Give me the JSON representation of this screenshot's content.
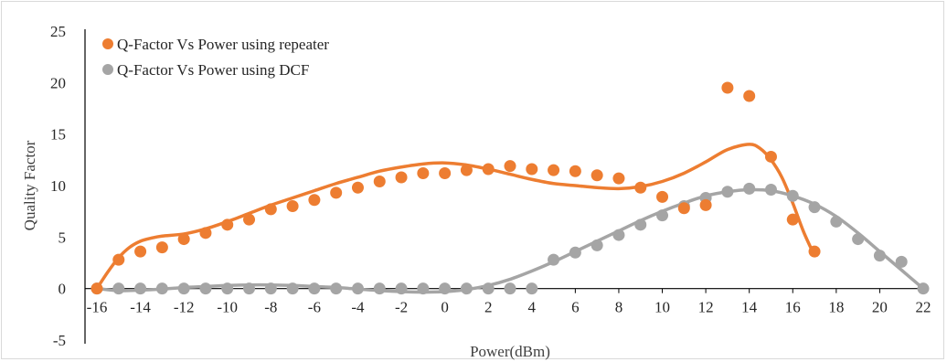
{
  "chart_data": {
    "type": "scatter",
    "title": "",
    "xlabel": "Power(dBm)",
    "ylabel": "Quality Factor",
    "xlim": [
      -16,
      22
    ],
    "ylim": [
      -5,
      25
    ],
    "xticks": [
      -16,
      -14,
      -12,
      -10,
      -8,
      -6,
      -4,
      -2,
      0,
      2,
      4,
      6,
      8,
      10,
      12,
      14,
      16,
      18,
      20,
      22
    ],
    "yticks": [
      -5,
      0,
      5,
      10,
      15,
      20,
      25
    ],
    "grid": false,
    "legend_position": "top-left",
    "series": [
      {
        "name": "Q-Factor Vs Power using repeater",
        "color": "#ed7d31",
        "x": [
          -16,
          -15,
          -14,
          -13,
          -12,
          -11,
          -10,
          -9,
          -8,
          -7,
          -6,
          -5,
          -4,
          -3,
          -2,
          -1,
          0,
          1,
          2,
          3,
          4,
          5,
          6,
          7,
          8,
          9,
          10,
          11,
          12,
          13,
          14,
          15,
          16,
          17
        ],
        "y": [
          0,
          2.8,
          3.6,
          4.0,
          4.8,
          5.4,
          6.2,
          6.7,
          7.7,
          8.0,
          8.6,
          9.3,
          9.8,
          10.4,
          10.8,
          11.2,
          11.2,
          11.5,
          11.6,
          11.9,
          11.6,
          11.5,
          11.4,
          11.0,
          10.7,
          9.8,
          8.9,
          7.8,
          8.1,
          19.5,
          18.7,
          12.8,
          6.7,
          3.6
        ],
        "trend_x": [
          -16,
          -15.5,
          -15,
          -14.5,
          -14,
          -13.5,
          -13,
          -12,
          -11,
          -10,
          -9,
          -8,
          -7,
          -6,
          -5,
          -4,
          -3,
          -2,
          -1,
          0,
          1,
          2,
          3,
          4,
          5,
          6,
          7,
          8,
          9,
          10,
          11,
          12,
          13,
          14,
          14.5,
          15,
          15.5,
          16,
          16.5,
          17
        ],
        "trend_y": [
          0,
          1.6,
          3.0,
          4.0,
          4.6,
          4.9,
          5.1,
          5.3,
          5.8,
          6.5,
          7.3,
          8.1,
          8.8,
          9.5,
          10.2,
          10.8,
          11.4,
          11.8,
          12.1,
          12.2,
          12.0,
          11.6,
          11.1,
          10.6,
          10.2,
          10.0,
          9.8,
          9.7,
          9.9,
          10.4,
          11.2,
          12.3,
          13.5,
          14.0,
          13.6,
          12.5,
          10.8,
          8.3,
          5.5,
          3.2
        ]
      },
      {
        "name": "Q-Factor Vs Power using DCF",
        "color": "#a5a5a5",
        "x": [
          -16,
          -15,
          -14,
          -13,
          -12,
          -11,
          -10,
          -9,
          -8,
          -7,
          -6,
          -5,
          -4,
          -3,
          -2,
          -1,
          0,
          1,
          2,
          3,
          4,
          5,
          6,
          7,
          8,
          9,
          10,
          11,
          12,
          13,
          14,
          15,
          16,
          17,
          18,
          19,
          20,
          21,
          22
        ],
        "y": [
          0,
          0,
          0,
          0,
          0,
          0,
          0,
          0,
          0,
          0,
          0,
          0,
          0,
          0,
          0,
          0,
          0,
          0,
          0,
          0,
          0,
          2.8,
          3.5,
          4.2,
          5.2,
          6.2,
          7.1,
          8.0,
          8.8,
          9.4,
          9.7,
          9.6,
          9.0,
          7.9,
          6.5,
          4.8,
          3.2,
          2.6,
          0
        ],
        "trend_x": [
          -16,
          -15,
          -14,
          -13,
          -12,
          -11,
          -10,
          -9,
          -8,
          -7,
          -6,
          -5,
          -4,
          -3,
          -2,
          -1,
          0,
          1,
          2,
          3,
          4,
          5,
          6,
          7,
          8,
          9,
          10,
          11,
          12,
          13,
          14,
          15,
          16,
          17,
          18,
          19,
          20,
          21,
          22
        ],
        "trend_y": [
          0,
          -0.2,
          -0.15,
          -0.05,
          0.1,
          0.2,
          0.3,
          0.35,
          0.35,
          0.3,
          0.2,
          0.1,
          -0.05,
          -0.2,
          -0.3,
          -0.35,
          -0.3,
          -0.1,
          0.3,
          0.9,
          1.7,
          2.6,
          3.6,
          4.6,
          5.6,
          6.6,
          7.5,
          8.3,
          9.0,
          9.4,
          9.6,
          9.5,
          9.0,
          8.2,
          7.0,
          5.4,
          3.6,
          1.8,
          0
        ]
      }
    ]
  }
}
